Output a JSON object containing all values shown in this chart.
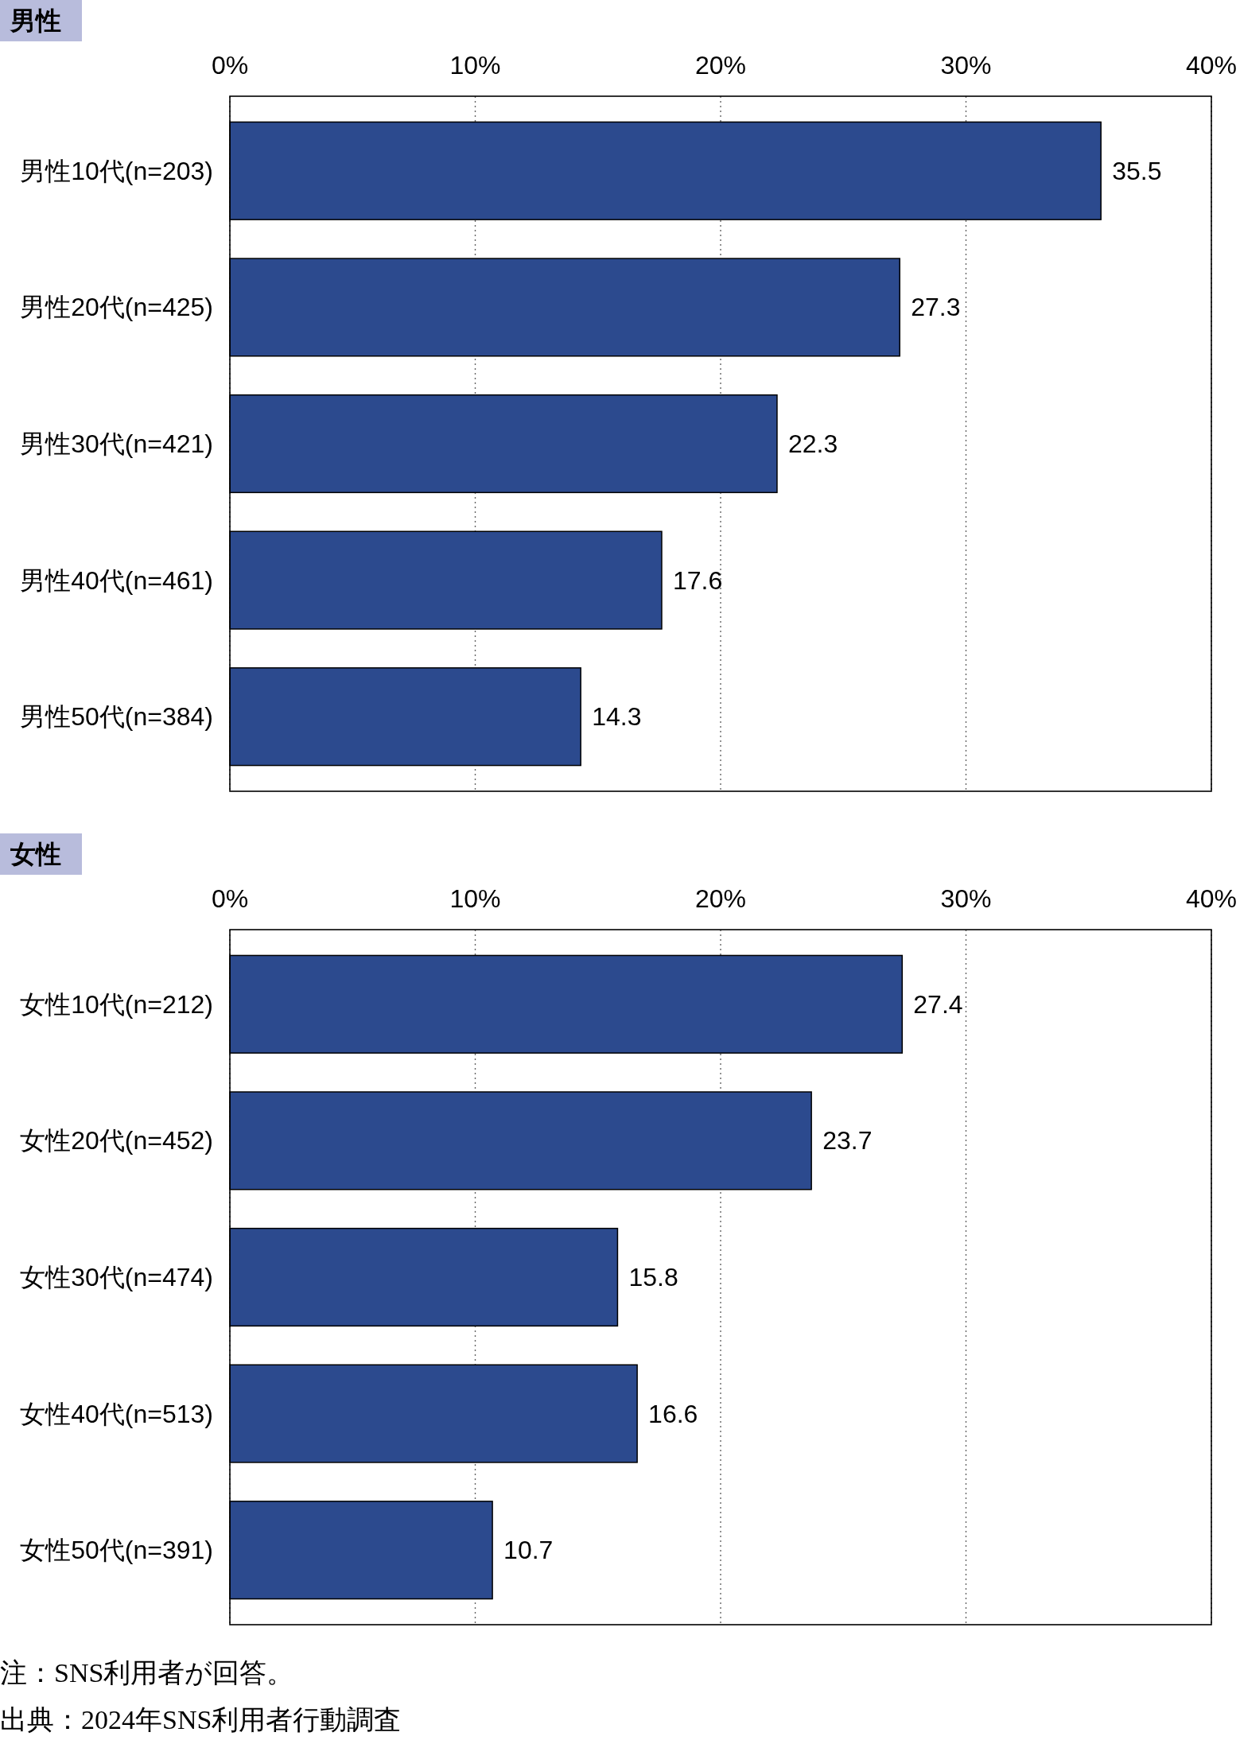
{
  "chart_data": [
    {
      "type": "bar",
      "orientation": "horizontal",
      "title": "男性",
      "categories": [
        "男性10代(n=203)",
        "男性20代(n=425)",
        "男性30代(n=421)",
        "男性40代(n=461)",
        "男性50代(n=384)"
      ],
      "values": [
        35.5,
        27.3,
        22.3,
        17.6,
        14.3
      ],
      "color": "#2c4a8e",
      "xlim": [
        0,
        40
      ],
      "xticks": [
        {
          "value": 0,
          "label": "0%"
        },
        {
          "value": 10,
          "label": "10%"
        },
        {
          "value": 20,
          "label": "20%"
        },
        {
          "value": 30,
          "label": "30%"
        },
        {
          "value": 40,
          "label": "40%"
        }
      ],
      "grid": "x",
      "data_labels": true
    },
    {
      "type": "bar",
      "orientation": "horizontal",
      "title": "女性",
      "categories": [
        "女性10代(n=212)",
        "女性20代(n=452)",
        "女性30代(n=474)",
        "女性40代(n=513)",
        "女性50代(n=391)"
      ],
      "values": [
        27.4,
        23.7,
        15.8,
        16.6,
        10.7
      ],
      "color": "#2c4a8e",
      "xlim": [
        0,
        40
      ],
      "xticks": [
        {
          "value": 0,
          "label": "0%"
        },
        {
          "value": 10,
          "label": "10%"
        },
        {
          "value": 20,
          "label": "20%"
        },
        {
          "value": 30,
          "label": "30%"
        },
        {
          "value": 40,
          "label": "40%"
        }
      ],
      "grid": "x",
      "data_labels": true,
      "annotations": [
        "注：SNS利用者が回答。",
        "出典：2024年SNS利用者行動調査"
      ]
    }
  ]
}
